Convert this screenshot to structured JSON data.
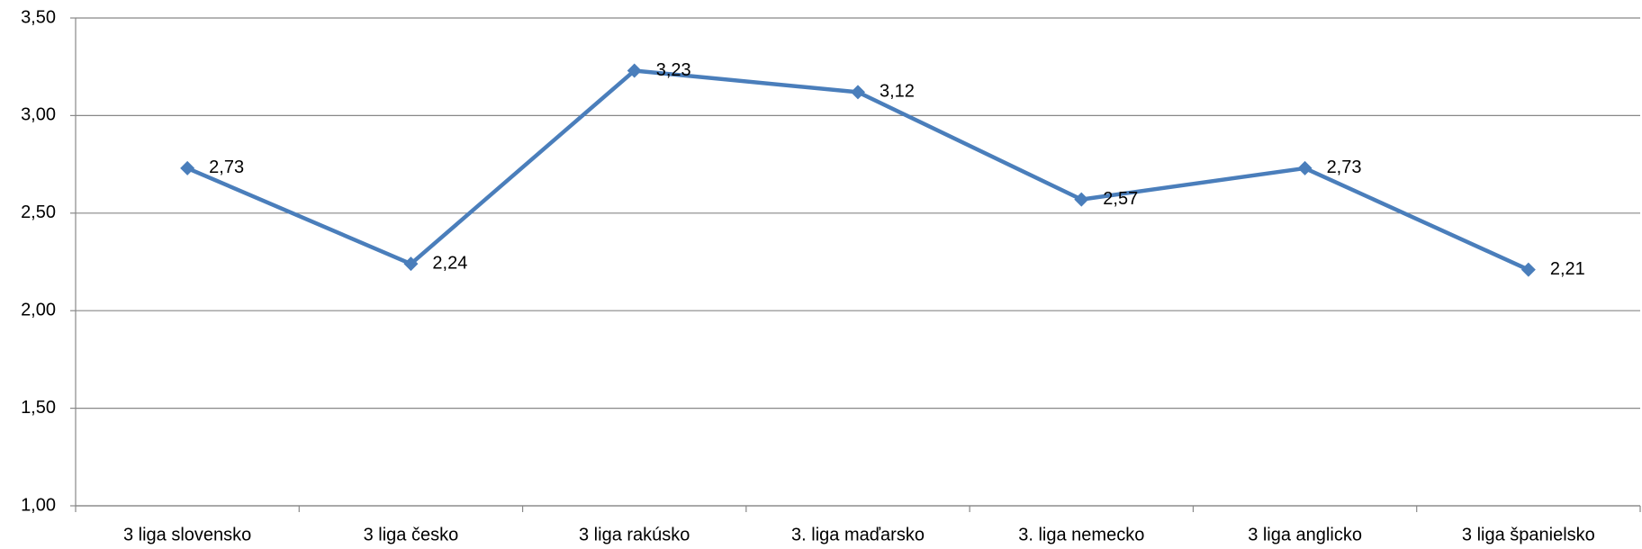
{
  "chart_data": {
    "type": "line",
    "categories": [
      "3 liga slovensko",
      "3 liga česko",
      "3 liga rakúsko",
      "3. liga maďarsko",
      "3. liga nemecko",
      "3 liga anglicko",
      "3 liga španielsko"
    ],
    "series": [
      {
        "color": "#4a7ebb",
        "values": [
          2.73,
          2.24,
          3.23,
          3.12,
          2.57,
          2.73,
          2.21
        ],
        "value_labels": [
          "2,73",
          "2,24",
          "3,23",
          "3,12",
          "2,57",
          "2,73",
          "2,21"
        ]
      }
    ],
    "ylim": [
      1,
      3.5
    ],
    "yticks": [
      {
        "value": 1,
        "label": "1,00"
      },
      {
        "value": 1.5,
        "label": "1,50"
      },
      {
        "value": 2,
        "label": "2,00"
      },
      {
        "value": 2.5,
        "label": "2,50"
      },
      {
        "value": 3,
        "label": "3,00"
      },
      {
        "value": 3.5,
        "label": "3,50"
      }
    ],
    "grid": true
  }
}
